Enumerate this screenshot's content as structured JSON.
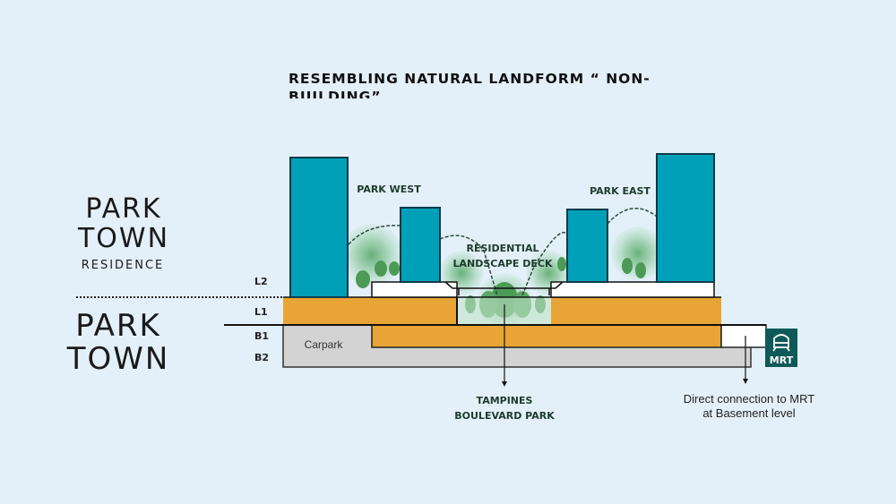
{
  "title": "RESEMBLING NATURAL LANDFORM “ NON-BUILDING”",
  "logos": {
    "top": {
      "line1": "PARK",
      "line2": "TOWN",
      "line3": "RESIDENCE"
    },
    "bottom": {
      "line1": "PARK",
      "line2": "TOWN"
    }
  },
  "labels": {
    "park_west": "PARK WEST",
    "park_east": "PARK EAST",
    "deck_line1": "RESIDENTIAL",
    "deck_line2": "LANDSCAPE DECK",
    "carpark": "Carpark",
    "tampines_line1": "TAMPINES",
    "tampines_line2": "BOULEVARD PARK",
    "mrt_line1": "Direct connection to MRT",
    "mrt_line2": "at Basement level",
    "mrt_badge": "MRT"
  },
  "levels": [
    "L2",
    "L1",
    "B1",
    "B2"
  ],
  "colors": {
    "tower": "#00a0b8",
    "podium": "#e8a535",
    "basement": "#d3d3d3",
    "greenery": "#3f9a4f",
    "mrt_badge": "#0d5a58"
  }
}
